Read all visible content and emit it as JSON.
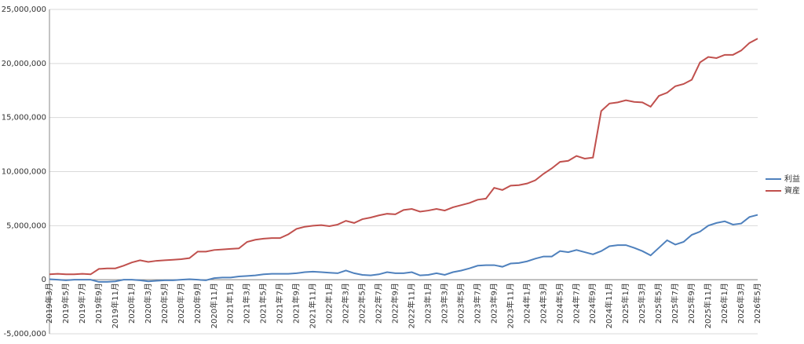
{
  "chart_data": {
    "type": "line",
    "categories": [
      "2019年3月",
      null,
      "2019年5月",
      null,
      "2019年7月",
      null,
      "2019年9月",
      null,
      "2019年11月",
      null,
      "2020年1月",
      null,
      "2020年3月",
      null,
      "2020年5月",
      null,
      "2020年7月",
      null,
      "2020年9月",
      null,
      "2020年11月",
      null,
      "2021年1月",
      null,
      "2021年3月",
      null,
      "2021年5月",
      null,
      "2021年7月",
      null,
      "2021年9月",
      null,
      "2021年11月",
      null,
      "2022年1月",
      null,
      "2022年3月",
      null,
      "2022年5月",
      null,
      "2022年7月",
      null,
      "2022年9月",
      null,
      "2022年11月",
      null,
      "2023年1月",
      null,
      "2023年3月",
      null,
      "2023年5月",
      null,
      "2023年7月",
      null,
      "2023年9月",
      null,
      "2023年11月",
      null,
      "2024年1月",
      null,
      "2024年3月",
      null,
      "2024年5月",
      null,
      "2024年7月",
      null,
      "2024年9月",
      null,
      "2024年11月",
      null,
      "2025年1月",
      null,
      "2025年3月",
      null,
      "2025年5月",
      null,
      "2025年7月",
      null,
      "2025年9月",
      null,
      "2025年11月",
      null,
      "2026年1月",
      null,
      "2026年3月",
      null,
      "2026年5月"
    ],
    "series": [
      {
        "name": "利益",
        "color": "#4f81bd",
        "values": [
          50000,
          0,
          -50000,
          0,
          0,
          0,
          -200000,
          -200000,
          -150000,
          0,
          0,
          -50000,
          -150000,
          -100000,
          -50000,
          -50000,
          0,
          50000,
          0,
          -50000,
          150000,
          200000,
          200000,
          300000,
          350000,
          400000,
          500000,
          550000,
          550000,
          550000,
          600000,
          700000,
          750000,
          700000,
          650000,
          600000,
          850000,
          600000,
          450000,
          400000,
          500000,
          700000,
          600000,
          600000,
          700000,
          400000,
          450000,
          600000,
          450000,
          700000,
          850000,
          1050000,
          1300000,
          1350000,
          1350000,
          1200000,
          1500000,
          1550000,
          1700000,
          1950000,
          2150000,
          2150000,
          2650000,
          2550000,
          2750000,
          2550000,
          2350000,
          2650000,
          3100000,
          3200000,
          3200000,
          2950000,
          2650000,
          2250000,
          2950000,
          3650000,
          3250000,
          3500000,
          4150000,
          4450000,
          5000000,
          5250000,
          5400000,
          5100000,
          5200000,
          5800000,
          6000000
        ]
      },
      {
        "name": "資産",
        "color": "#c0504d",
        "values": [
          500000,
          550000,
          500000,
          500000,
          550000,
          500000,
          1000000,
          1050000,
          1050000,
          1300000,
          1600000,
          1800000,
          1650000,
          1750000,
          1800000,
          1850000,
          1900000,
          2000000,
          2600000,
          2600000,
          2750000,
          2800000,
          2850000,
          2900000,
          3500000,
          3700000,
          3800000,
          3850000,
          3850000,
          4200000,
          4700000,
          4900000,
          5000000,
          5050000,
          4950000,
          5100000,
          5450000,
          5250000,
          5600000,
          5750000,
          5950000,
          6100000,
          6050000,
          6450000,
          6550000,
          6300000,
          6400000,
          6550000,
          6400000,
          6700000,
          6900000,
          7100000,
          7400000,
          7500000,
          8500000,
          8300000,
          8700000,
          8750000,
          8900000,
          9200000,
          9800000,
          10300000,
          10900000,
          11000000,
          11450000,
          11200000,
          11300000,
          15600000,
          16300000,
          16400000,
          16600000,
          16450000,
          16400000,
          16000000,
          17000000,
          17300000,
          17900000,
          18100000,
          18500000,
          20100000,
          20600000,
          20500000,
          20800000,
          20800000,
          21200000,
          21900000,
          22300000
        ]
      }
    ],
    "ylim": [
      -5000000,
      25000000
    ],
    "yticks": [
      {
        "value": -5000000,
        "label": "-5,000,000"
      },
      0,
      {
        "value": 5000000,
        "label": "5,000,000"
      },
      {
        "value": 10000000,
        "label": "10,000,000"
      },
      {
        "value": 15000000,
        "label": "15,000,000"
      },
      {
        "value": 20000000,
        "label": "20,000,000"
      },
      {
        "value": 25000000,
        "label": "25,000,000"
      }
    ],
    "grid": true,
    "legend": "right"
  }
}
